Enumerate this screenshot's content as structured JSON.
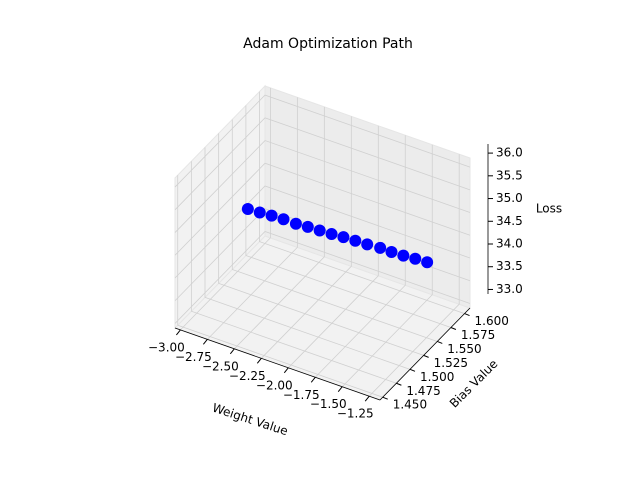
{
  "chart_data": {
    "type": "scatter3d",
    "title": "Adam Optimization Path",
    "xlabel": "Weight Value",
    "ylabel": "Bias Value",
    "zlabel": "Loss",
    "color": "#0000ff",
    "grid": true,
    "x": [
      -2.86,
      -2.76,
      -2.66,
      -2.56,
      -2.45,
      -2.35,
      -2.25,
      -2.15,
      -2.05,
      -1.95,
      -1.85,
      -1.74,
      -1.64,
      -1.54,
      -1.44,
      -1.34
    ],
    "y": [
      1.541,
      1.543,
      1.545,
      1.547,
      1.548,
      1.55,
      1.552,
      1.554,
      1.556,
      1.558,
      1.56,
      1.562,
      1.563,
      1.565,
      1.567,
      1.569
    ],
    "z": [
      34.5,
      34.48,
      34.47,
      34.45,
      34.43,
      34.42,
      34.4,
      34.38,
      34.37,
      34.35,
      34.33,
      34.32,
      34.3,
      34.28,
      34.27,
      34.25
    ],
    "xlim": [
      -3.05,
      -1.15
    ],
    "xticks": [
      {
        "value": -3.0,
        "label": "−3.00"
      },
      {
        "value": -2.75,
        "label": "−2.75"
      },
      {
        "value": -2.5,
        "label": "−2.50"
      },
      {
        "value": -2.25,
        "label": "−2.25"
      },
      {
        "value": -2.0,
        "label": "−2.00"
      },
      {
        "value": -1.75,
        "label": "−1.75"
      },
      {
        "value": -1.5,
        "label": "−1.50"
      },
      {
        "value": -1.25,
        "label": "−1.25"
      }
    ],
    "ylim": [
      1.445,
      1.61
    ],
    "yticks": [
      {
        "value": 1.45,
        "label": "1.450"
      },
      1.475,
      {
        "value": 1.5,
        "label": "1.500"
      },
      1.525,
      {
        "value": 1.55,
        "label": "1.550"
      },
      1.575,
      {
        "value": 1.6,
        "label": "1.600"
      }
    ],
    "zlim": [
      32.9,
      36.2
    ],
    "zticks": [
      {
        "value": 33,
        "label": "33.0"
      },
      33.5,
      {
        "value": 34,
        "label": "34.0"
      },
      34.5,
      {
        "value": 35,
        "label": "35.0"
      },
      35.5,
      {
        "value": 36,
        "label": "36.0"
      }
    ]
  }
}
